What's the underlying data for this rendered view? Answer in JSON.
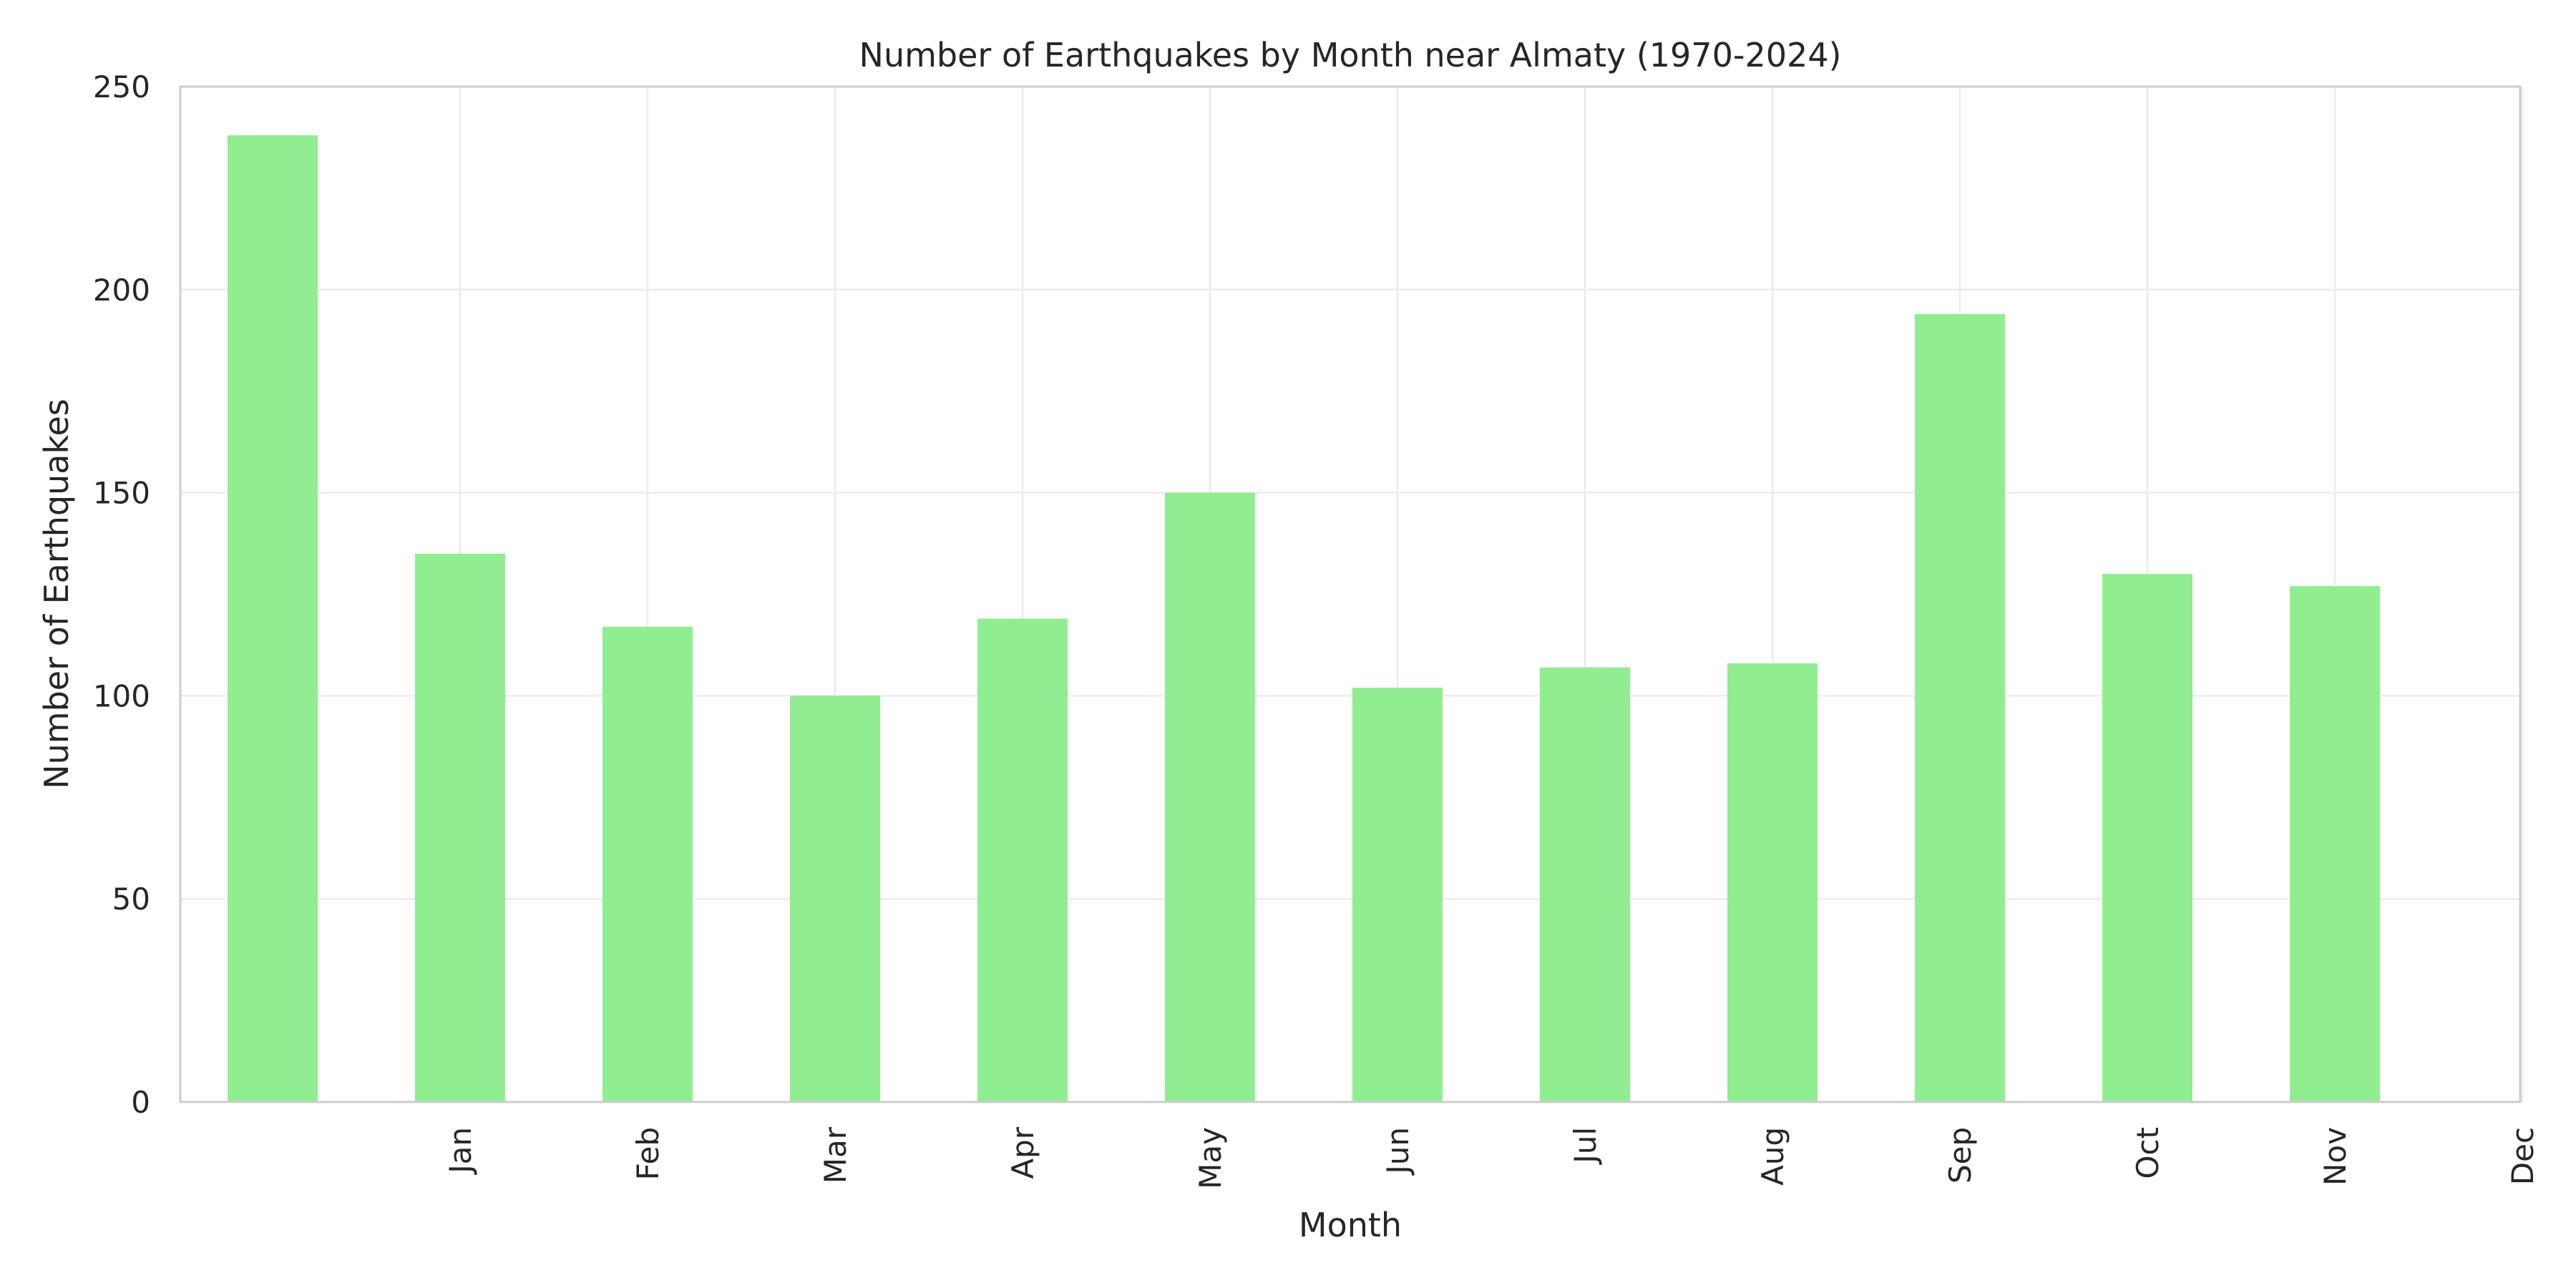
{
  "chart_data": {
    "type": "bar",
    "title": "Number of Earthquakes by Month near Almaty (1970-2024)",
    "xlabel": "Month",
    "ylabel": "Number of Earthquakes",
    "x_tick_labels": [
      "Jan",
      "Feb",
      "Mar",
      "Apr",
      "May",
      "Jun",
      "Jul",
      "Aug",
      "Sep",
      "Oct",
      "Nov",
      "Dec"
    ],
    "values": [
      238,
      135,
      117,
      100,
      119,
      150,
      102,
      107,
      108,
      194,
      130,
      127
    ],
    "ylim": [
      0,
      250
    ],
    "yticks": [
      0,
      50,
      100,
      150,
      200,
      250
    ],
    "grid": true,
    "legend": "none",
    "colors": {
      "bar": "#90ee90",
      "grid": "#ebebeb",
      "axes": "#cccccc",
      "text": "#262626"
    }
  }
}
